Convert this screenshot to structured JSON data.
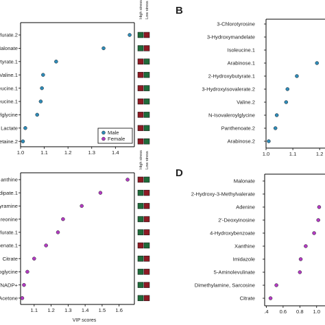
{
  "figure": {
    "colors": {
      "male": "#2e8bb8",
      "female": "#b23ac2",
      "high_stress": "#8e1a24",
      "low_stress": "#1f6b3a"
    },
    "legend_items": [
      "Male",
      "Female"
    ],
    "stress_headers": [
      "High stress",
      "Low stress"
    ]
  },
  "chart_data": [
    {
      "type": "scatter",
      "panel": "",
      "xlim": [
        1.0,
        1.48
      ],
      "xticks": [
        1.0,
        1.1,
        1.2,
        1.3,
        1.4
      ],
      "tick_labels": [
        "1.0",
        "1.1",
        "1.2",
        "1.3",
        "1.4"
      ],
      "xlabel": "",
      "labels": [
        "ylurate.2",
        "Malonate",
        "ytyrate.1",
        "Valine.1",
        "leucine.1",
        "leucine.1",
        "ylglycine",
        "Lactate",
        "etaine.2"
      ],
      "values": [
        1.46,
        1.35,
        1.15,
        1.095,
        1.09,
        1.085,
        1.07,
        1.02,
        1.01
      ],
      "groups": [
        "male",
        "male",
        "male",
        "male",
        "male",
        "male",
        "male",
        "male",
        "male"
      ],
      "stress": [
        [
          "low",
          "high"
        ],
        [
          "low",
          "high"
        ],
        [
          "high",
          "low"
        ],
        [
          "high",
          "low"
        ],
        [
          "high",
          "low"
        ],
        [
          "high",
          "low"
        ],
        [
          "high",
          "low"
        ],
        [
          "high",
          "low"
        ],
        [
          "high",
          "low"
        ]
      ],
      "legend": [
        "Male",
        "Female"
      ]
    },
    {
      "type": "scatter",
      "panel": "B",
      "xlim": [
        1.0,
        1.22
      ],
      "xticks": [
        1.0,
        1.1,
        1.2
      ],
      "tick_labels": [
        "1.0",
        "1.1",
        "1.2"
      ],
      "xlabel": "",
      "labels": [
        "3-Chlorotyrosine",
        "3-Hydroxymandelate",
        "Isoleucine.1",
        "Arabinose.1",
        "2-Hydroxybutyrate.1",
        "3-Hydroxyisovalerate.2",
        "Valine.2",
        "N-Isovaleroylglycine",
        "Panthenoate.2",
        "Arabinose.2"
      ],
      "values": [
        null,
        null,
        null,
        1.19,
        1.115,
        1.08,
        1.075,
        1.04,
        1.035,
        1.01
      ],
      "groups": [
        "male",
        "male",
        "male",
        "male",
        "male",
        "male",
        "male",
        "male",
        "male",
        "male"
      ]
    },
    {
      "type": "scatter",
      "panel": "",
      "xlim": [
        1.02,
        1.69
      ],
      "xticks": [
        1.1,
        1.2,
        1.3,
        1.4,
        1.5,
        1.6
      ],
      "tick_labels": [
        "1.1",
        "1.2",
        "1.3",
        "1.4",
        "1.5",
        "1.6"
      ],
      "xlabel": "VIP scores",
      "labels": [
        "anthine",
        "dipate.1",
        "yramine",
        "reonine",
        "ylurate.1",
        "henate.1",
        "Citrate",
        "oglycine",
        "/NADP+",
        "Acetone"
      ],
      "values": [
        1.65,
        1.49,
        1.38,
        1.27,
        1.24,
        1.17,
        1.1,
        1.06,
        1.04,
        1.03
      ],
      "groups": [
        "female",
        "female",
        "female",
        "female",
        "female",
        "female",
        "female",
        "female",
        "female",
        "female"
      ],
      "stress": [
        [
          "high",
          "low"
        ],
        [
          "low",
          "high"
        ],
        [
          "low",
          "high"
        ],
        [
          "low",
          "high"
        ],
        [
          "low",
          "high"
        ],
        [
          "high",
          "low"
        ],
        [
          "low",
          "high"
        ],
        [
          "low",
          "high"
        ],
        [
          "low",
          "high"
        ],
        [
          "low",
          "high"
        ]
      ]
    },
    {
      "type": "scatter",
      "panel": "D",
      "xlim": [
        0.38,
        1.1
      ],
      "xticks": [
        0.4,
        0.6,
        0.8,
        1.0
      ],
      "tick_labels": [
        ".4",
        "0.6",
        "0.8",
        "1.0"
      ],
      "xlabel": "",
      "labels": [
        "Malonate",
        "2-Hydroxy-3-Methylvalerate",
        "Adenine",
        "2'-Deoxyinosine",
        "4-Hydroxybenzoate",
        "Xanthine",
        "Imidazole",
        "5-Aminolevulinate",
        "Dimethylamine, Sarcosine",
        "Citrate"
      ],
      "values": [
        null,
        null,
        1.03,
        1.02,
        0.97,
        0.87,
        0.81,
        0.8,
        0.52,
        0.45
      ],
      "groups": [
        "female",
        "female",
        "female",
        "female",
        "female",
        "female",
        "female",
        "female",
        "female",
        "female"
      ]
    }
  ]
}
